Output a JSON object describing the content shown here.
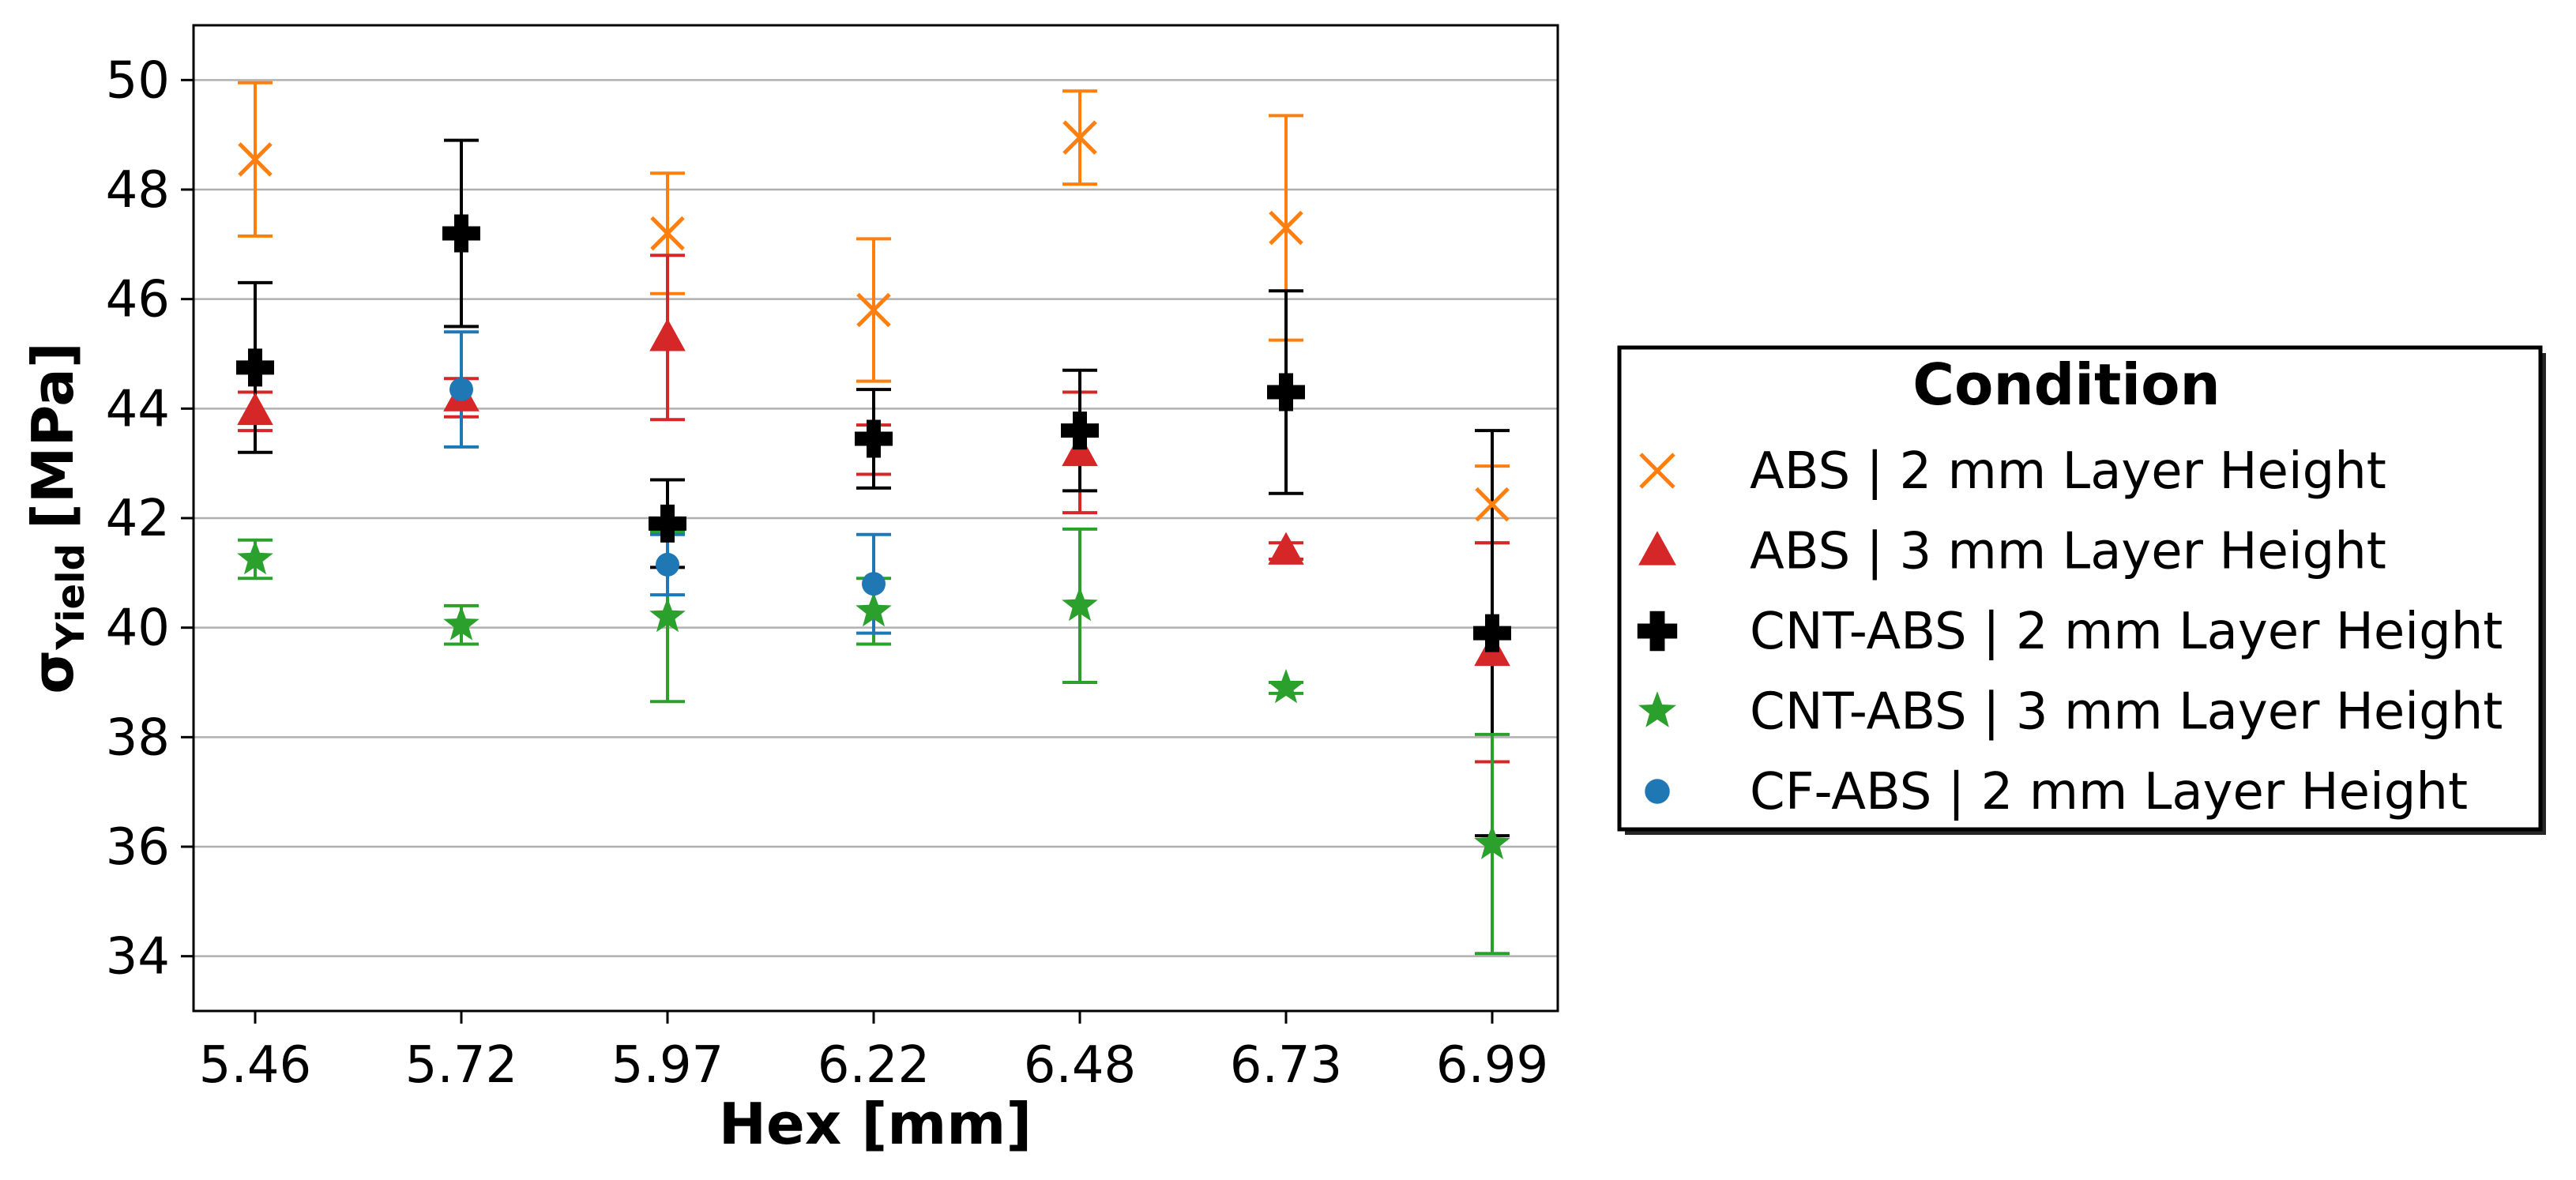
{
  "chart_data": {
    "type": "scatter",
    "title": "",
    "xlabel": "Hex [mm]",
    "ylabel_symbol": "σ",
    "ylabel_subscript": "Yield",
    "ylabel_unit": "[MPa]",
    "categories": [
      "5.46",
      "5.72",
      "5.97",
      "6.22",
      "6.48",
      "6.73",
      "6.99"
    ],
    "ylim": [
      33,
      51
    ],
    "yticks": [
      34,
      36,
      38,
      40,
      42,
      44,
      46,
      48,
      50
    ],
    "grid": "y",
    "legend": {
      "title": "Condition",
      "placement": "outside-right"
    },
    "series": [
      {
        "name": "ABS | 2 mm Layer Height",
        "marker": "x",
        "color": "#ff7f0e",
        "values": [
          48.55,
          null,
          47.2,
          45.8,
          48.95,
          47.3,
          42.25
        ],
        "err": [
          1.4,
          null,
          1.1,
          1.3,
          0.85,
          2.05,
          0.7
        ]
      },
      {
        "name": "ABS | 3 mm Layer Height",
        "marker": "triangle",
        "color": "#d62728",
        "values": [
          43.95,
          44.2,
          45.3,
          null,
          43.2,
          41.4,
          39.55
        ],
        "err": [
          0.35,
          0.35,
          1.5,
          0.45,
          1.1,
          0.15,
          2.0
        ]
      },
      {
        "name": "CNT-ABS | 2 mm Layer Height",
        "marker": "plus",
        "color": "#000000",
        "values": [
          44.75,
          47.2,
          41.9,
          43.45,
          43.6,
          44.3,
          39.9
        ],
        "err": [
          1.55,
          1.7,
          0.8,
          0.9,
          1.1,
          1.85,
          3.7
        ]
      },
      {
        "name": "CNT-ABS | 3 mm Layer Height",
        "marker": "star",
        "color": "#2ca02c",
        "values": [
          41.25,
          40.05,
          40.2,
          40.3,
          40.4,
          38.9,
          36.05
        ],
        "err": [
          0.35,
          0.35,
          1.55,
          0.6,
          1.4,
          0.1,
          2.0
        ]
      },
      {
        "name": "CF-ABS | 2 mm Layer Height",
        "marker": "circle",
        "color": "#1f77b4",
        "values": [
          null,
          44.35,
          41.15,
          40.8,
          null,
          null,
          null
        ],
        "err": [
          null,
          1.05,
          0.55,
          0.9,
          null,
          null,
          null
        ]
      }
    ],
    "colors": {
      "grid": "#b0b0b0",
      "axis": "#000000",
      "background": "#ffffff"
    }
  }
}
